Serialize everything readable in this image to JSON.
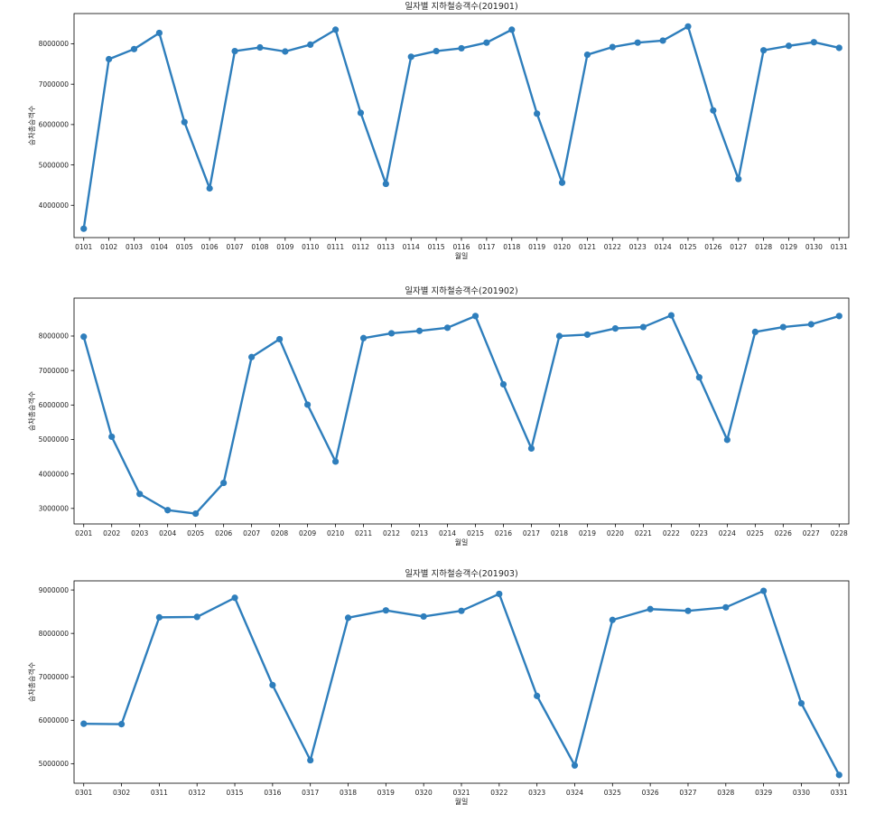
{
  "chart_data": [
    {
      "type": "line",
      "title": "일자별 지하철승객수(201901)",
      "xlabel": "월일",
      "ylabel": "승차총승객수",
      "color": "#2e7ebc",
      "ylim": [
        3200000,
        8750000
      ],
      "yticks": [
        "4000000",
        "5000000",
        "6000000",
        "7000000",
        "8000000"
      ],
      "grid": false,
      "categories": [
        "0101",
        "0102",
        "0103",
        "0104",
        "0105",
        "0106",
        "0107",
        "0108",
        "0109",
        "0110",
        "0111",
        "0112",
        "0113",
        "0114",
        "0115",
        "0116",
        "0117",
        "0118",
        "0119",
        "0120",
        "0121",
        "0122",
        "0123",
        "0124",
        "0125",
        "0126",
        "0127",
        "0128",
        "0129",
        "0130",
        "0131"
      ],
      "values": [
        3420000,
        7620000,
        7870000,
        8270000,
        6060000,
        4420000,
        7820000,
        7910000,
        7810000,
        7980000,
        8350000,
        6290000,
        4530000,
        7680000,
        7820000,
        7890000,
        8030000,
        8350000,
        6270000,
        4560000,
        7730000,
        7920000,
        8030000,
        8080000,
        8430000,
        6350000,
        4650000,
        7840000,
        7950000,
        8040000,
        7900000
      ]
    },
    {
      "type": "line",
      "title": "일자별 지하철승객수(201902)",
      "xlabel": "월일",
      "ylabel": "승차총승객수",
      "color": "#2e7ebc",
      "ylim": [
        2550000,
        9100000
      ],
      "yticks": [
        "3000000",
        "4000000",
        "5000000",
        "6000000",
        "7000000",
        "8000000"
      ],
      "grid": false,
      "categories": [
        "0201",
        "0202",
        "0203",
        "0204",
        "0205",
        "0206",
        "0207",
        "0208",
        "0209",
        "0210",
        "0211",
        "0212",
        "0213",
        "0214",
        "0215",
        "0216",
        "0217",
        "0218",
        "0219",
        "0220",
        "0221",
        "0222",
        "0223",
        "0224",
        "0225",
        "0226",
        "0227",
        "0228"
      ],
      "values": [
        7980000,
        5080000,
        3420000,
        2950000,
        2850000,
        3740000,
        7390000,
        7910000,
        6010000,
        4360000,
        7940000,
        8080000,
        8150000,
        8240000,
        8580000,
        6600000,
        4740000,
        8000000,
        8040000,
        8220000,
        8260000,
        8600000,
        6800000,
        4990000,
        8120000,
        8260000,
        8340000,
        8580000
      ]
    },
    {
      "type": "line",
      "title": "일자별 지하철승객수(201903)",
      "xlabel": "월일",
      "ylabel": "승차총승객수",
      "color": "#2e7ebc",
      "ylim": [
        4550000,
        9210000
      ],
      "yticks": [
        "5000000",
        "6000000",
        "7000000",
        "8000000",
        "9000000"
      ],
      "grid": false,
      "categories": [
        "0301",
        "0302",
        "0311",
        "0312",
        "0315",
        "0316",
        "0317",
        "0318",
        "0319",
        "0320",
        "0321",
        "0322",
        "0323",
        "0324",
        "0325",
        "0326",
        "0327",
        "0328",
        "0329",
        "0330",
        "0331"
      ],
      "values": [
        5920000,
        5910000,
        8370000,
        8380000,
        8820000,
        6810000,
        5080000,
        8360000,
        8530000,
        8390000,
        8520000,
        8910000,
        6560000,
        4960000,
        8310000,
        8560000,
        8520000,
        8600000,
        8980000,
        6390000,
        4740000
      ]
    }
  ]
}
